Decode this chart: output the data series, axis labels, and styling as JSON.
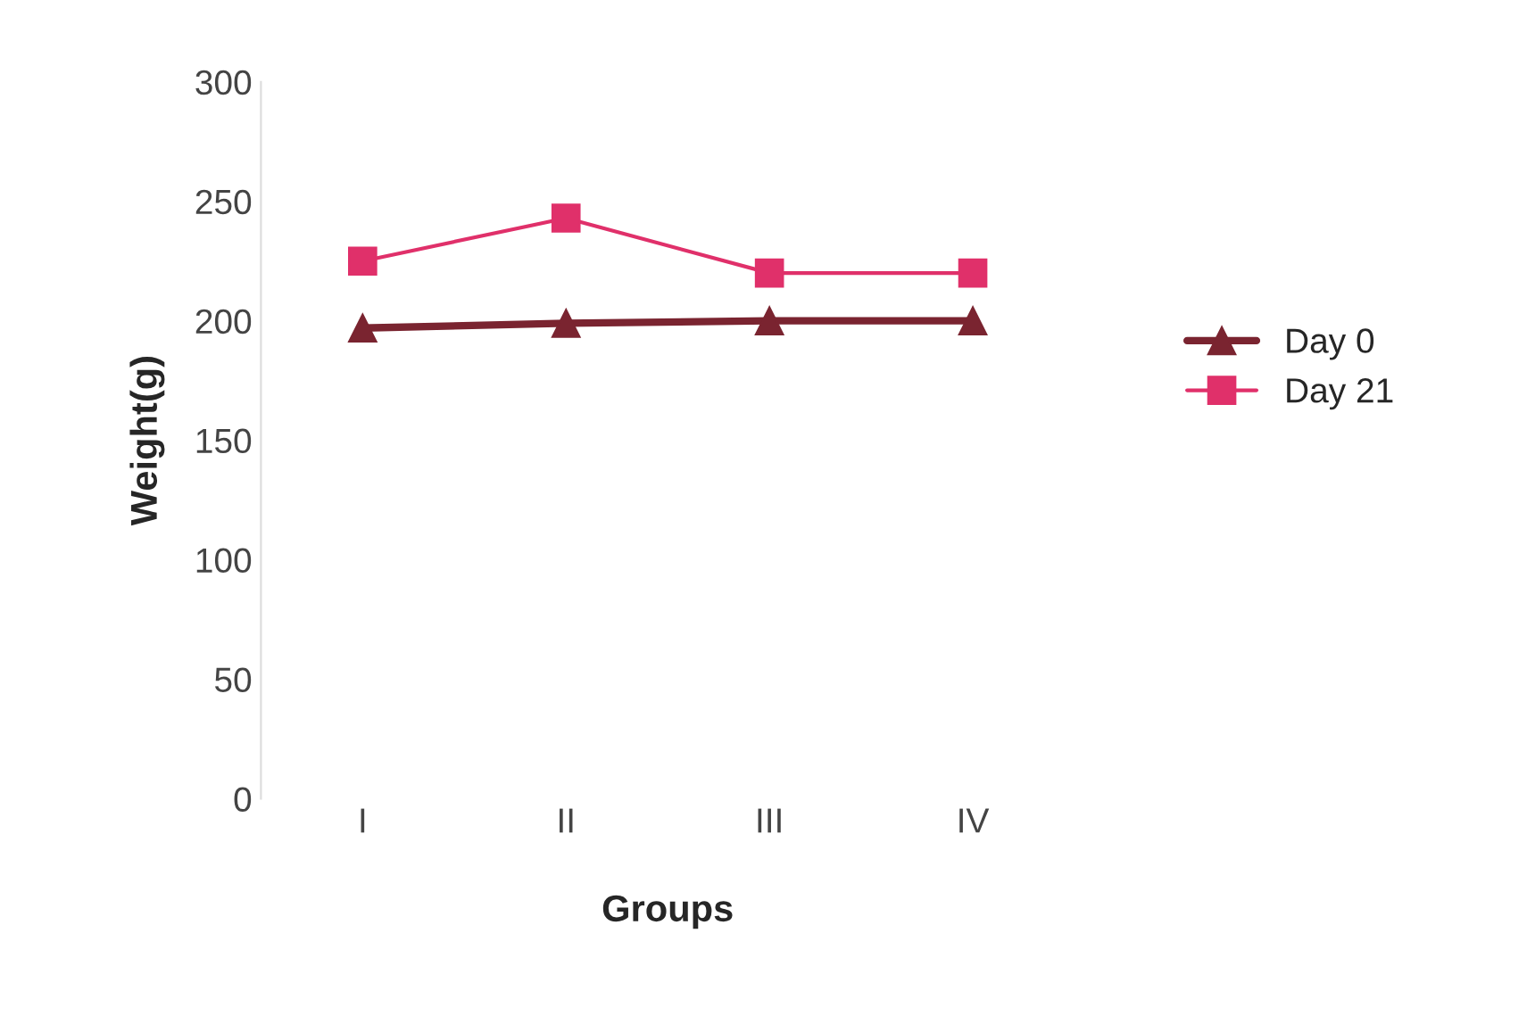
{
  "chart_data": {
    "type": "line",
    "xlabel": "Groups",
    "ylabel": "Weight(g)",
    "categories": [
      "I",
      "II",
      "III",
      "IV"
    ],
    "series": [
      {
        "name": "Day 0",
        "color": "#7a2430",
        "marker": "triangle",
        "values": [
          197,
          199,
          200,
          200
        ]
      },
      {
        "name": "Day 21",
        "color": "#e0306a",
        "marker": "square",
        "values": [
          225,
          243,
          220,
          220
        ]
      }
    ],
    "ylim": [
      0,
      300
    ],
    "yticks": [
      0,
      50,
      100,
      150,
      200,
      250,
      300
    ],
    "grid": false,
    "legend": "right"
  }
}
